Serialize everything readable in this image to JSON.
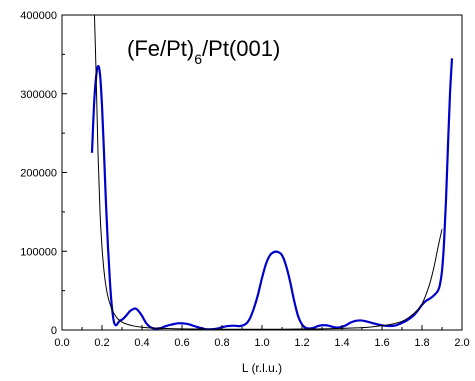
{
  "chart_data": {
    "type": "line",
    "title_parts": {
      "before": "(Fe/Pt)",
      "subscript": "6",
      "after": "/Pt(001)"
    },
    "xlabel": "L (r.l.u.)",
    "ylabel": "",
    "xlim": [
      0.0,
      2.0
    ],
    "ylim": [
      0,
      400000
    ],
    "x_ticks": [
      0.0,
      0.2,
      0.4,
      0.6,
      0.8,
      1.0,
      1.2,
      1.4,
      1.6,
      1.8,
      2.0
    ],
    "x_tick_labels": [
      "0.0",
      "0.2",
      "0.4",
      "0.6",
      "0.8",
      "1.0",
      "1.2",
      "1.4",
      "1.6",
      "1.8",
      "2.0"
    ],
    "y_ticks": [
      0,
      100000,
      200000,
      300000,
      400000
    ],
    "y_tick_labels": [
      "0",
      "100000",
      "200000",
      "300000",
      "400000"
    ],
    "grid": false,
    "series": [
      {
        "color": "#0000cc",
        "line_width": 2.2,
        "x": [
          0.15,
          0.16,
          0.17,
          0.18,
          0.19,
          0.2,
          0.21,
          0.22,
          0.23,
          0.24,
          0.25,
          0.26,
          0.27,
          0.28,
          0.29,
          0.3,
          0.32,
          0.34,
          0.36,
          0.37,
          0.38,
          0.4,
          0.42,
          0.44,
          0.46,
          0.48,
          0.5,
          0.52,
          0.55,
          0.58,
          0.62,
          0.65,
          0.68,
          0.72,
          0.75,
          0.78,
          0.8,
          0.83,
          0.86,
          0.89,
          0.92,
          0.94,
          0.96,
          0.98,
          1.0,
          1.02,
          1.04,
          1.06,
          1.08,
          1.1,
          1.12,
          1.14,
          1.16,
          1.18,
          1.2,
          1.22,
          1.24,
          1.26,
          1.28,
          1.3,
          1.32,
          1.34,
          1.36,
          1.38,
          1.4,
          1.42,
          1.44,
          1.46,
          1.48,
          1.5,
          1.52,
          1.55,
          1.58,
          1.61,
          1.64,
          1.67,
          1.7,
          1.73,
          1.76,
          1.78,
          1.8,
          1.82,
          1.84,
          1.86,
          1.88,
          1.89,
          1.9,
          1.91,
          1.92,
          1.93,
          1.94,
          1.95
        ],
        "y": [
          225000,
          285000,
          320000,
          335000,
          325000,
          285000,
          225000,
          160000,
          105000,
          60000,
          28000,
          10000,
          6000,
          9000,
          12000,
          13000,
          18000,
          24000,
          27000,
          27000,
          25000,
          18000,
          9000,
          4000,
          2000,
          2000,
          3000,
          5000,
          7000,
          8500,
          8000,
          6000,
          3500,
          1000,
          1000,
          2000,
          3500,
          5000,
          5500,
          5000,
          8000,
          15000,
          28000,
          45000,
          66000,
          84000,
          95000,
          99000,
          99000,
          95000,
          82000,
          62000,
          38000,
          18000,
          7000,
          2500,
          2000,
          3000,
          5000,
          6000,
          6000,
          5000,
          3500,
          3000,
          4000,
          6000,
          9000,
          11000,
          12000,
          12000,
          11000,
          9000,
          7000,
          5500,
          5000,
          6000,
          9000,
          13000,
          19000,
          25000,
          32000,
          37000,
          40000,
          44000,
          50000,
          58000,
          75000,
          110000,
          165000,
          235000,
          300000,
          345000
        ]
      },
      {
        "color": "#000000",
        "line_width": 1.0,
        "x": [
          0.16,
          0.17,
          0.18,
          0.19,
          0.2,
          0.21,
          0.22,
          0.23,
          0.24,
          0.25,
          0.26,
          0.28,
          0.3,
          0.33,
          0.36,
          0.4,
          0.45,
          0.5,
          0.6,
          0.7,
          0.8,
          0.9,
          1.0,
          1.1,
          1.2,
          1.3,
          1.4,
          1.45,
          1.5,
          1.55,
          1.6,
          1.65,
          1.7,
          1.74,
          1.78,
          1.8,
          1.82,
          1.84,
          1.86,
          1.88,
          1.9
        ],
        "y": [
          420000,
          330000,
          225000,
          150000,
          105000,
          75000,
          55000,
          42000,
          33000,
          26000,
          21000,
          14000,
          10000,
          7000,
          5000,
          3500,
          2500,
          2000,
          1500,
          1200,
          1000,
          1000,
          1000,
          1000,
          1200,
          1500,
          2000,
          2500,
          3000,
          4000,
          5500,
          7500,
          11000,
          17000,
          26000,
          33000,
          45000,
          60000,
          80000,
          105000,
          128000
        ]
      }
    ]
  }
}
